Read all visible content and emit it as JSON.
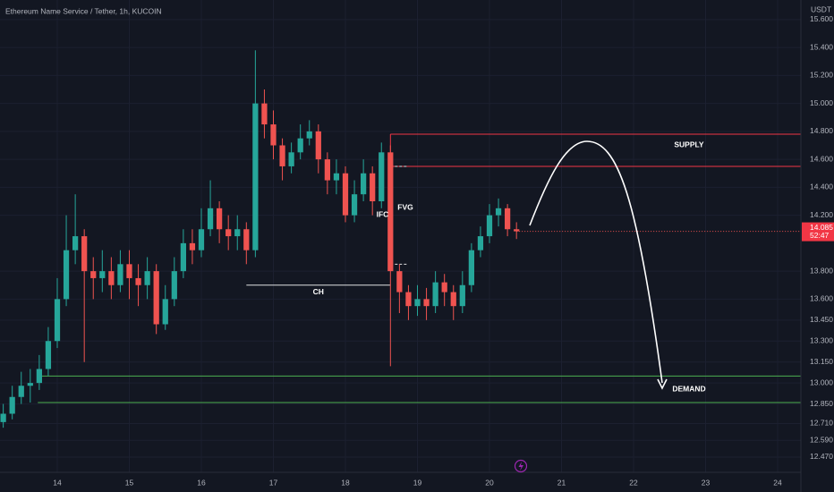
{
  "chart_data": {
    "type": "candlestick",
    "title": "Ethereum Name Service / Tether, 1h, KUCOIN",
    "currency": "USDT",
    "up_color": "#26a69a",
    "down_color": "#ef5350",
    "grid": true,
    "xlim": [
      13.205,
      24.323
    ],
    "xticks": [
      14,
      15,
      16,
      17,
      18,
      19,
      20,
      21,
      22,
      23,
      24
    ],
    "ylim": [
      12.22,
      15.74
    ],
    "yticks": [
      {
        "value": 15.6,
        "label": "15.600"
      },
      {
        "value": 15.4,
        "label": "15.400"
      },
      {
        "value": 15.2,
        "label": "15.200"
      },
      {
        "value": 15.0,
        "label": "15.000"
      },
      {
        "value": 14.8,
        "label": "14.800"
      },
      {
        "value": 14.6,
        "label": "14.600"
      },
      {
        "value": 14.4,
        "label": "14.400"
      },
      {
        "value": 14.2,
        "label": "14.200"
      },
      {
        "value": 13.8,
        "label": "13.800"
      },
      {
        "value": 13.6,
        "label": "13.600"
      },
      {
        "value": 13.45,
        "label": "13.450"
      },
      {
        "value": 13.3,
        "label": "13.300"
      },
      {
        "value": 13.15,
        "label": "13.150"
      },
      {
        "value": 13.0,
        "label": "13.000"
      },
      {
        "value": 12.85,
        "label": "12.850"
      },
      {
        "value": 12.71,
        "label": "12.710"
      },
      {
        "value": 12.59,
        "label": "12.590"
      },
      {
        "value": 12.47,
        "label": "12.470"
      }
    ],
    "x": [
      13.25,
      13.375,
      13.5,
      13.625,
      13.75,
      13.875,
      14,
      14.125,
      14.25,
      14.375,
      14.5,
      14.625,
      14.75,
      14.875,
      15,
      15.125,
      15.25,
      15.375,
      15.5,
      15.625,
      15.75,
      15.875,
      16,
      16.125,
      16.25,
      16.375,
      16.5,
      16.625,
      16.75,
      16.875,
      17,
      17.125,
      17.25,
      17.375,
      17.5,
      17.625,
      17.75,
      17.875,
      18,
      18.125,
      18.25,
      18.375,
      18.5,
      18.625,
      18.75,
      18.875,
      19,
      19.125,
      19.25,
      19.375,
      19.5,
      19.625,
      19.75,
      19.875,
      20,
      20.125,
      20.25,
      20.375
    ],
    "open": [
      12.72,
      12.78,
      12.9,
      12.98,
      13.0,
      13.1,
      13.3,
      13.6,
      13.95,
      14.05,
      13.8,
      13.75,
      13.8,
      13.7,
      13.85,
      13.75,
      13.7,
      13.8,
      13.42,
      13.6,
      13.8,
      14.0,
      13.95,
      14.1,
      14.25,
      14.1,
      14.05,
      14.1,
      13.95,
      15.0,
      14.85,
      14.7,
      14.55,
      14.65,
      14.75,
      14.8,
      14.6,
      14.45,
      14.5,
      14.2,
      14.35,
      14.5,
      14.3,
      14.65,
      13.8,
      13.65,
      13.55,
      13.6,
      13.55,
      13.72,
      13.65,
      13.55,
      13.7,
      13.95,
      14.05,
      14.2,
      14.25,
      14.1
    ],
    "high": [
      12.85,
      12.98,
      13.08,
      13.1,
      13.2,
      13.4,
      13.75,
      14.2,
      14.35,
      14.1,
      13.9,
      13.95,
      13.9,
      13.95,
      13.95,
      13.85,
      13.9,
      13.85,
      13.7,
      13.9,
      14.1,
      14.1,
      14.25,
      14.45,
      14.3,
      14.2,
      14.2,
      14.15,
      15.38,
      15.1,
      14.95,
      14.75,
      14.72,
      14.85,
      14.88,
      14.85,
      14.65,
      14.6,
      14.55,
      14.45,
      14.6,
      14.55,
      14.72,
      14.7,
      13.85,
      13.7,
      13.7,
      13.68,
      13.8,
      13.78,
      13.7,
      13.8,
      14.0,
      14.12,
      14.28,
      14.32,
      14.28,
      14.15
    ],
    "low": [
      12.68,
      12.74,
      12.85,
      12.86,
      12.95,
      13.05,
      13.25,
      13.55,
      13.85,
      13.15,
      13.6,
      13.65,
      13.6,
      13.65,
      13.6,
      13.55,
      13.6,
      13.35,
      13.38,
      13.55,
      13.75,
      13.85,
      13.9,
      14.05,
      14.0,
      13.95,
      13.95,
      13.85,
      13.9,
      14.75,
      14.6,
      14.45,
      14.5,
      14.6,
      14.7,
      14.5,
      14.35,
      14.35,
      14.15,
      14.15,
      14.3,
      14.2,
      14.25,
      13.12,
      13.5,
      13.45,
      13.48,
      13.45,
      13.5,
      13.55,
      13.45,
      13.5,
      13.65,
      13.9,
      14.0,
      14.12,
      14.05,
      14.03
    ],
    "close": [
      12.78,
      12.9,
      12.98,
      13.0,
      13.1,
      13.3,
      13.6,
      13.95,
      14.05,
      13.8,
      13.75,
      13.8,
      13.7,
      13.85,
      13.75,
      13.7,
      13.8,
      13.42,
      13.6,
      13.8,
      14.0,
      13.95,
      14.1,
      14.25,
      14.1,
      14.05,
      14.1,
      13.95,
      15.0,
      14.85,
      14.7,
      14.55,
      14.65,
      14.75,
      14.8,
      14.6,
      14.45,
      14.5,
      14.2,
      14.35,
      14.5,
      14.3,
      14.65,
      13.8,
      13.65,
      13.55,
      13.6,
      13.55,
      13.72,
      13.65,
      13.55,
      13.7,
      13.95,
      14.05,
      14.2,
      14.25,
      14.1,
      14.085
    ],
    "last_price": {
      "value": 14.085,
      "label": "14.085",
      "countdown": "52:47"
    },
    "supply_zone": {
      "label": "SUPPLY",
      "top": 14.78,
      "bottom": 14.55,
      "start": 18.625
    },
    "demand_zone": {
      "label": "DEMAND",
      "top": 13.05,
      "bottom": 12.86,
      "start": 13.73
    },
    "ch": {
      "label": "CH",
      "price": 13.7,
      "start": 16.625,
      "end": 18.625
    },
    "fvg": {
      "label": "FVG",
      "top": 14.55,
      "bottom": 13.85,
      "start": 18.625,
      "end": 18.85
    },
    "ifc": {
      "label": "IFC"
    }
  }
}
